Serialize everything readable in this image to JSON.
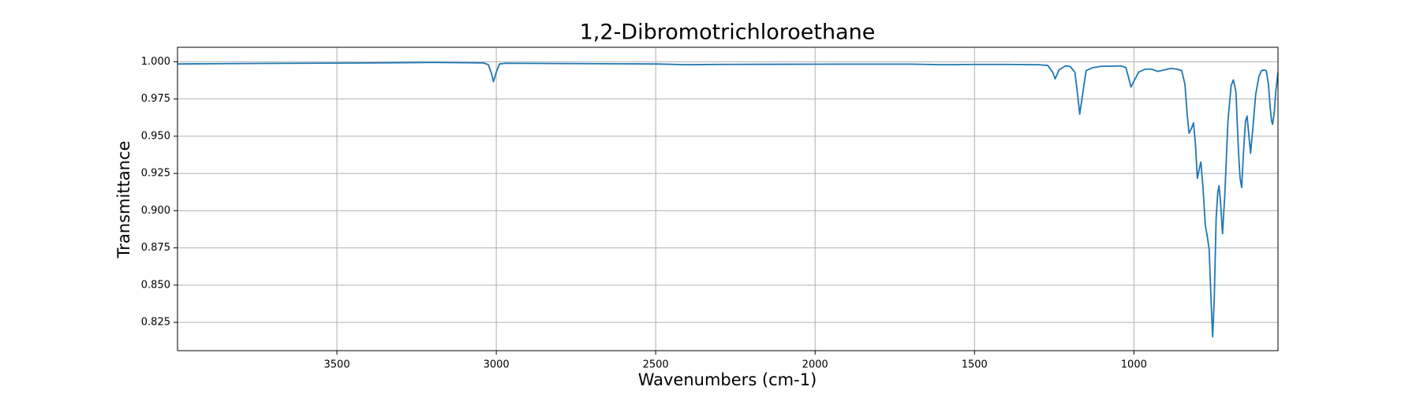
{
  "chart_data": {
    "type": "line",
    "title": "1,2-Dibromotrichloroethane",
    "x_label": "Wavenumbers (cm-1)",
    "y_label": "Transmittance",
    "x": [
      4000,
      3800,
      3600,
      3400,
      3200,
      3100,
      3040,
      3025,
      3015,
      3009,
      3000,
      2990,
      2970,
      2800,
      2600,
      2500,
      2400,
      2300,
      2100,
      1900,
      1700,
      1600,
      1500,
      1400,
      1300,
      1270,
      1255,
      1247,
      1235,
      1215,
      1200,
      1185,
      1175,
      1170,
      1163,
      1150,
      1130,
      1100,
      1070,
      1040,
      1025,
      1015,
      1009,
      1000,
      985,
      965,
      945,
      925,
      905,
      885,
      865,
      850,
      840,
      833,
      827,
      820,
      813,
      807,
      801,
      795,
      790,
      783,
      776,
      770,
      764,
      758,
      753,
      748,
      742,
      737,
      733,
      728,
      722,
      715,
      705,
      695,
      688,
      680,
      672,
      667,
      662,
      656,
      650,
      645,
      640,
      634,
      627,
      618,
      608,
      600,
      592,
      585,
      578,
      572,
      568,
      565,
      560,
      555,
      548
    ],
    "series": [
      {
        "color": "#1f77b4",
        "values": [
          0.9985,
          0.9988,
          0.999,
          0.9992,
          0.9995,
          0.9993,
          0.9992,
          0.998,
          0.992,
          0.9866,
          0.993,
          0.9985,
          0.999,
          0.9988,
          0.9986,
          0.9985,
          0.998,
          0.9982,
          0.9983,
          0.9984,
          0.9984,
          0.998,
          0.9982,
          0.9982,
          0.998,
          0.9975,
          0.993,
          0.9885,
          0.9945,
          0.9972,
          0.9968,
          0.993,
          0.975,
          0.9648,
          0.975,
          0.994,
          0.996,
          0.997,
          0.997,
          0.9972,
          0.996,
          0.988,
          0.983,
          0.987,
          0.993,
          0.995,
          0.995,
          0.9935,
          0.9945,
          0.9955,
          0.995,
          0.994,
          0.985,
          0.965,
          0.952,
          0.955,
          0.959,
          0.945,
          0.9216,
          0.928,
          0.9326,
          0.915,
          0.89,
          0.883,
          0.874,
          0.84,
          0.8153,
          0.84,
          0.895,
          0.912,
          0.9167,
          0.905,
          0.8845,
          0.91,
          0.96,
          0.984,
          0.9878,
          0.98,
          0.94,
          0.922,
          0.9155,
          0.94,
          0.96,
          0.9635,
          0.952,
          0.9386,
          0.955,
          0.978,
          0.99,
          0.994,
          0.9945,
          0.994,
          0.985,
          0.968,
          0.96,
          0.958,
          0.965,
          0.98,
          0.9927
        ]
      }
    ],
    "xlim": [
      4000,
      548
    ],
    "ylim": [
      0.806,
      1.0097
    ],
    "xticks": [
      3500,
      3000,
      2500,
      2000,
      1500,
      1000
    ],
    "yticks": [
      {
        "value": 1,
        "label": "1.000"
      },
      0.975,
      {
        "value": 0.95,
        "label": "0.950"
      },
      0.925,
      {
        "value": 0.9,
        "label": "0.900"
      },
      0.875,
      {
        "value": 0.85,
        "label": "0.850"
      },
      0.825
    ],
    "grid": true
  }
}
